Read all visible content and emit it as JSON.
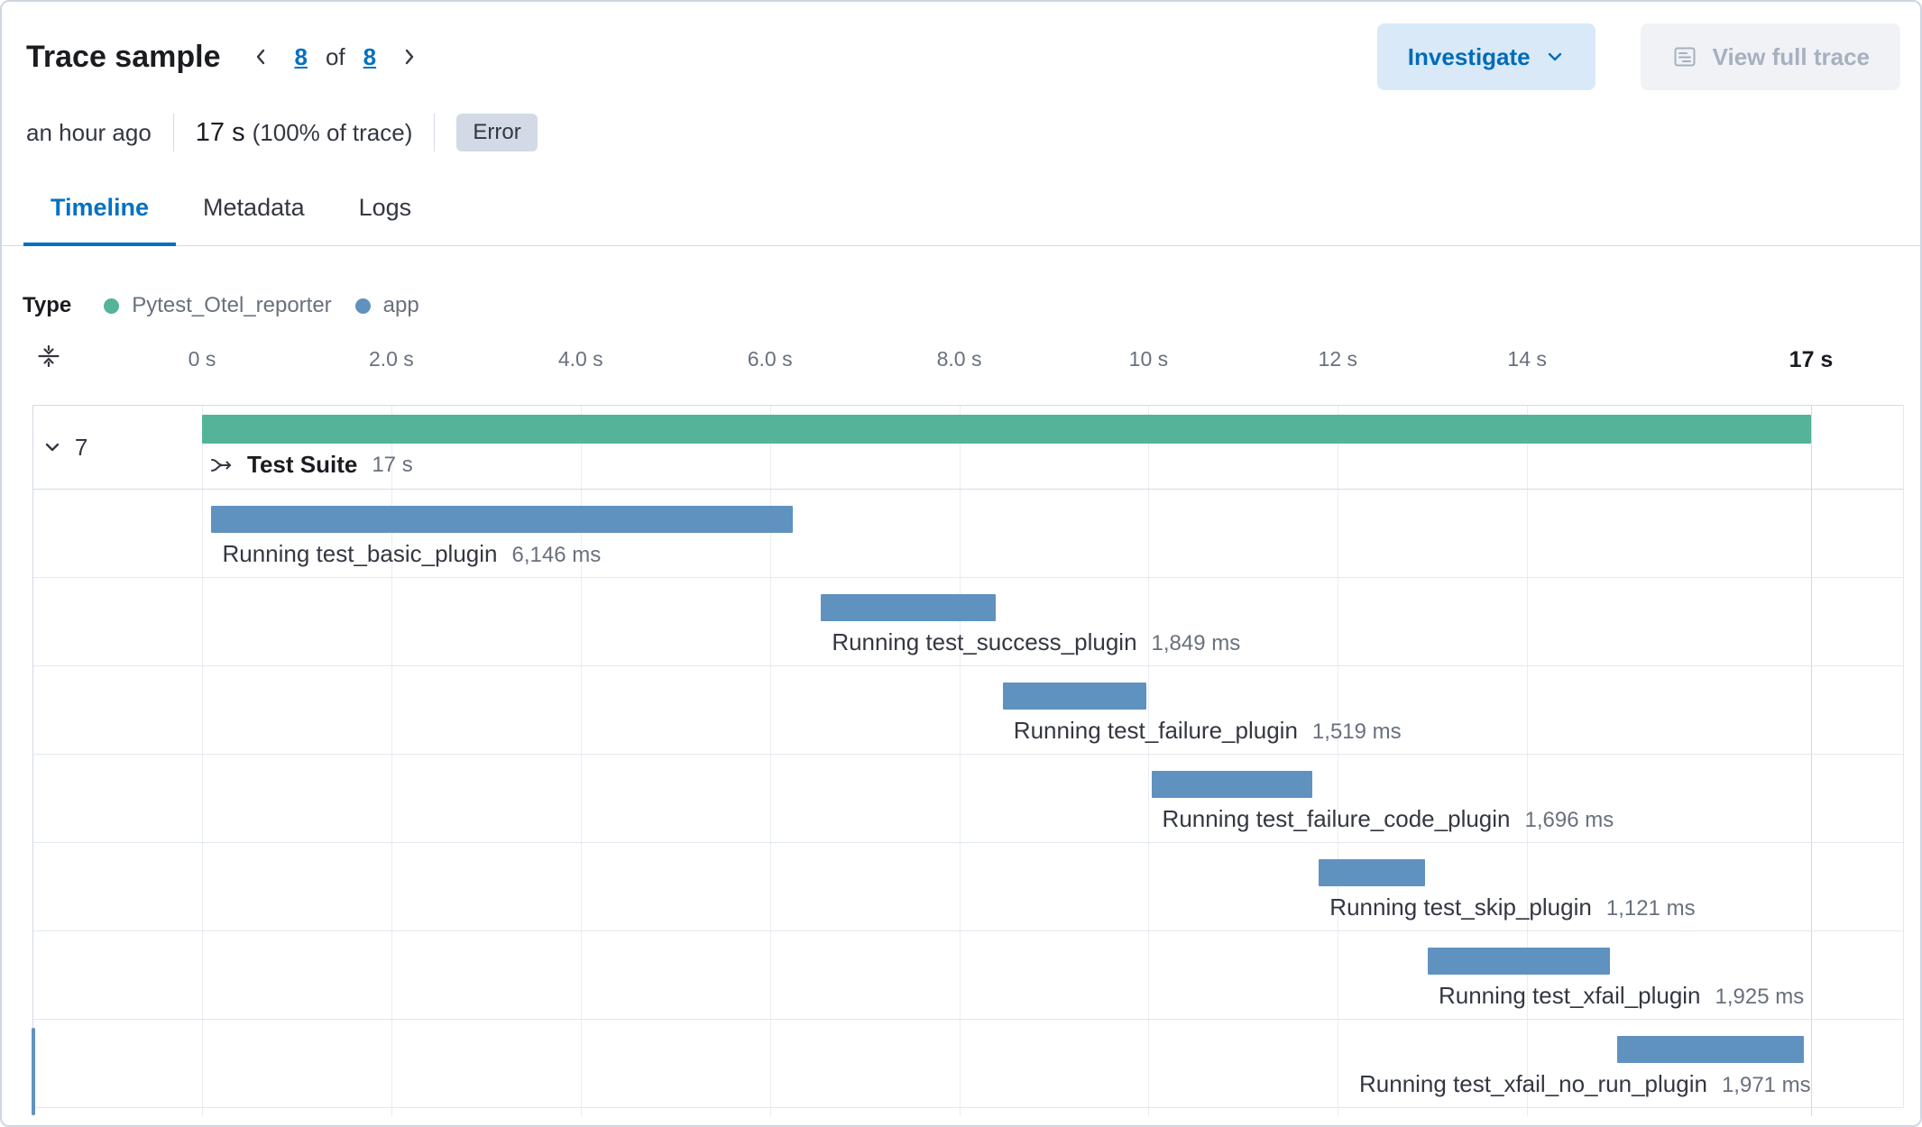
{
  "header": {
    "title": "Trace sample",
    "pagination": {
      "current": "8",
      "of_label": "of",
      "total": "8"
    },
    "investigate_label": "Investigate",
    "view_full_trace_label": "View full trace"
  },
  "summary": {
    "time_ago": "an hour ago",
    "duration": "17 s",
    "duration_pct": "(100% of trace)",
    "error_badge": "Error"
  },
  "tabs": [
    {
      "label": "Timeline",
      "active": true
    },
    {
      "label": "Metadata",
      "active": false
    },
    {
      "label": "Logs",
      "active": false
    }
  ],
  "legend": {
    "type_label": "Type",
    "items": [
      {
        "label": "Pytest_Otel_reporter",
        "color": "#54b399"
      },
      {
        "label": "app",
        "color": "#6092c0"
      }
    ]
  },
  "icons": {
    "prev": "chevron-left",
    "next": "chevron-right",
    "investigate_menu": "chevron-down",
    "view_full_trace": "trace-list",
    "collapse_timeline": "fold-vertical",
    "parent_toggle": "chevron-down",
    "span_type": "branch-merge"
  },
  "colors": {
    "accent": "#0071c2",
    "green_series": "#54b399",
    "blue_series": "#6092c0",
    "badge_bg": "#d3dae6"
  },
  "chart_data": {
    "type": "waterfall",
    "title": "Trace sample timeline",
    "xlim": [
      0,
      17
    ],
    "x_unit": "s",
    "grid": true,
    "axis_ticks": [
      {
        "label": "0 s",
        "value": 0
      },
      {
        "label": "2.0 s",
        "value": 2
      },
      {
        "label": "4.0 s",
        "value": 4
      },
      {
        "label": "6.0 s",
        "value": 6
      },
      {
        "label": "8.0 s",
        "value": 8
      },
      {
        "label": "10 s",
        "value": 10
      },
      {
        "label": "12 s",
        "value": 12
      },
      {
        "label": "14 s",
        "value": 14
      },
      {
        "label": "17 s",
        "value": 17
      }
    ],
    "parent": {
      "child_count": "7",
      "name": "Test Suite",
      "duration_label": "17 s",
      "start_s": 0,
      "duration_s": 17,
      "color": "#54b399",
      "type": "Pytest_Otel_reporter"
    },
    "spans": [
      {
        "name": "Running test_basic_plugin",
        "duration_label": "6,146 ms",
        "start_s": 0.1,
        "duration_s": 6.146,
        "color": "#6092c0",
        "type": "app"
      },
      {
        "name": "Running test_success_plugin",
        "duration_label": "1,849 ms",
        "start_s": 6.54,
        "duration_s": 1.849,
        "color": "#6092c0",
        "type": "app"
      },
      {
        "name": "Running test_failure_plugin",
        "duration_label": "1,519 ms",
        "start_s": 8.46,
        "duration_s": 1.519,
        "color": "#6092c0",
        "type": "app"
      },
      {
        "name": "Running test_failure_code_plugin",
        "duration_label": "1,696 ms",
        "start_s": 10.03,
        "duration_s": 1.696,
        "color": "#6092c0",
        "type": "app"
      },
      {
        "name": "Running test_skip_plugin",
        "duration_label": "1,121 ms",
        "start_s": 11.8,
        "duration_s": 1.121,
        "color": "#6092c0",
        "type": "app"
      },
      {
        "name": "Running test_xfail_plugin",
        "duration_label": "1,925 ms",
        "start_s": 12.95,
        "duration_s": 1.925,
        "color": "#6092c0",
        "type": "app"
      },
      {
        "name": "Running test_xfail_no_run_plugin",
        "duration_label": "1,971 ms",
        "start_s": 14.95,
        "duration_s": 1.971,
        "color": "#6092c0",
        "type": "app"
      }
    ]
  }
}
